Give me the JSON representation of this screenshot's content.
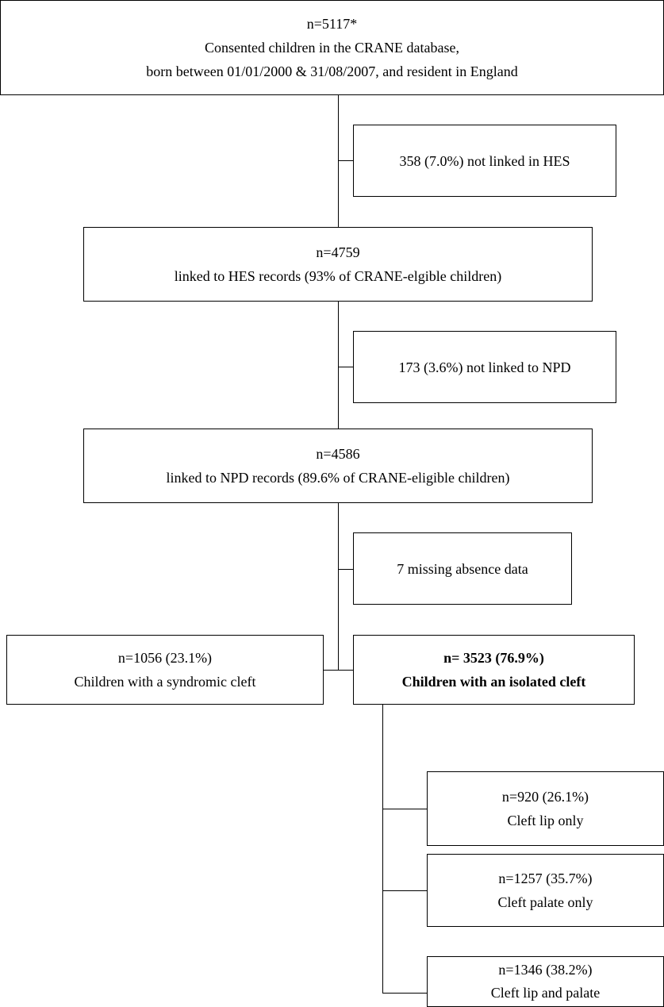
{
  "flowchart": {
    "top": {
      "count": "n=5117*",
      "line1": "Consented children in the CRANE database,",
      "line2": "born between 01/01/2000 & 31/08/2007, and resident in England"
    },
    "excl_hes": {
      "text": "358 (7.0%) not linked in HES"
    },
    "hes": {
      "count": "n=4759",
      "desc": "linked to HES records (93% of CRANE-elgible children)"
    },
    "excl_npd": {
      "text": "173 (3.6%) not linked to NPD"
    },
    "npd": {
      "count": "n=4586",
      "desc": "linked to NPD records (89.6% of CRANE-eligible children)"
    },
    "excl_absence": {
      "text": "7 missing absence data"
    },
    "syndromic": {
      "count": "n=1056 (23.1%)",
      "desc": "Children with a syndromic cleft"
    },
    "isolated": {
      "count": "n= 3523 (76.9%)",
      "desc": "Children with an isolated cleft"
    },
    "lip_only": {
      "count": "n=920 (26.1%)",
      "desc": "Cleft lip only"
    },
    "palate_only": {
      "count": "n=1257 (35.7%)",
      "desc": "Cleft palate only"
    },
    "lip_palate": {
      "count": "n=1346 (38.2%)",
      "desc": "Cleft lip and palate"
    }
  }
}
